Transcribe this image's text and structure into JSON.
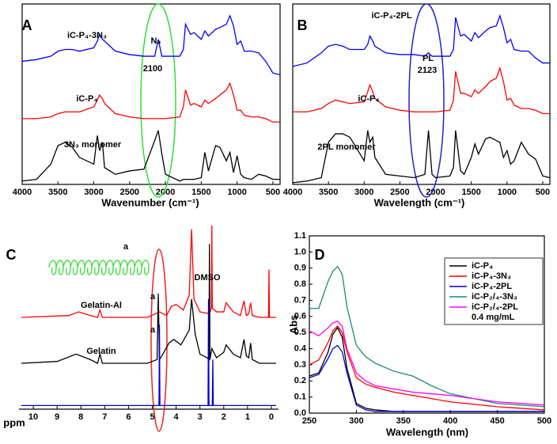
{
  "chart_data": [
    {
      "type": "line",
      "panel": "A",
      "xlabel": "Wavenumber (cm⁻¹)",
      "xlim": [
        4000,
        400
      ],
      "ylim": [
        0,
        10.7
      ],
      "xticks": [
        4000,
        3500,
        3000,
        2500,
        2000,
        1500,
        1000,
        500
      ],
      "annotations": [
        "iC-P₄-3N₃",
        "N₃",
        "2100",
        "iC-P₄",
        "3N₃ monomer"
      ],
      "x": [
        4000,
        3800,
        3600,
        3500,
        3400,
        3300,
        3200,
        3000,
        2950,
        2920,
        2880,
        2850,
        2700,
        2500,
        2300,
        2150,
        2100,
        2050,
        2000,
        1800,
        1750,
        1720,
        1650,
        1600,
        1500,
        1450,
        1400,
        1300,
        1240,
        1150,
        1100,
        1050,
        1000,
        950,
        900,
        800,
        700,
        600,
        500,
        400
      ],
      "series": [
        {
          "color": "#0000ff",
          "values": [
            7.3,
            7.4,
            7.6,
            7.9,
            8.0,
            8.0,
            7.9,
            8.1,
            8.5,
            8.9,
            8.6,
            8.5,
            7.9,
            7.7,
            7.6,
            7.6,
            8.6,
            7.6,
            7.6,
            7.6,
            8.0,
            9.5,
            8.9,
            9.0,
            8.6,
            9.1,
            8.8,
            9.2,
            9.3,
            9.5,
            10.0,
            9.4,
            8.3,
            8.5,
            7.9,
            7.9,
            7.8,
            7.3,
            6.6,
            6.5
          ]
        },
        {
          "color": "#ff0000",
          "values": [
            3.9,
            3.9,
            4.0,
            4.2,
            4.3,
            4.3,
            4.3,
            4.6,
            5.0,
            5.3,
            5.1,
            4.8,
            4.2,
            4.0,
            3.9,
            3.9,
            3.9,
            3.9,
            3.9,
            4.0,
            4.6,
            5.6,
            4.7,
            4.8,
            4.6,
            5.0,
            4.8,
            5.1,
            5.3,
            5.6,
            6.0,
            5.3,
            4.4,
            4.4,
            4.1,
            4.0,
            4.0,
            3.9,
            3.7,
            3.7
          ]
        },
        {
          "color": "#000000",
          "values": [
            0.2,
            0.3,
            1.2,
            2.3,
            2.5,
            2.2,
            1.6,
            1.2,
            2.9,
            2.0,
            2.5,
            1.0,
            0.6,
            0.8,
            0.9,
            2.6,
            3.2,
            1.8,
            0.6,
            0.2,
            0.3,
            0.3,
            0.3,
            0.3,
            0.4,
            1.9,
            0.8,
            2.3,
            2.2,
            1.4,
            1.9,
            0.7,
            1.7,
            0.6,
            0.4,
            0.3,
            0.6,
            0.5,
            0.3,
            0.3
          ]
        }
      ]
    },
    {
      "type": "line",
      "panel": "B",
      "xlabel": "Wavelength (cm⁻¹)",
      "xlim": [
        4000,
        400
      ],
      "ylim": [
        0,
        10.7
      ],
      "xticks": [
        4000,
        3500,
        3000,
        2500,
        2000,
        1500,
        1000,
        500
      ],
      "annotations": [
        "iC-P₄-2PL",
        "PL",
        "2123",
        "iC-P₄",
        "2PL monomer"
      ],
      "x": [
        4000,
        3800,
        3600,
        3500,
        3400,
        3300,
        3200,
        3000,
        2950,
        2920,
        2880,
        2850,
        2700,
        2500,
        2300,
        2150,
        2100,
        2050,
        2000,
        1800,
        1750,
        1720,
        1650,
        1600,
        1500,
        1450,
        1400,
        1300,
        1240,
        1150,
        1100,
        1050,
        1000,
        950,
        900,
        800,
        700,
        600,
        500,
        400
      ],
      "series": [
        {
          "color": "#0000ff",
          "values": [
            7.0,
            7.2,
            7.8,
            8.2,
            8.3,
            8.2,
            8.0,
            8.0,
            8.3,
            8.8,
            8.5,
            8.2,
            7.8,
            7.7,
            7.7,
            7.6,
            7.8,
            7.6,
            7.6,
            7.6,
            8.0,
            9.9,
            8.8,
            8.9,
            8.5,
            9.0,
            8.7,
            9.1,
            9.3,
            9.4,
            10.0,
            9.3,
            8.4,
            8.6,
            8.0,
            7.9,
            7.9,
            7.5,
            7.2,
            7.2
          ]
        },
        {
          "color": "#ff0000",
          "values": [
            4.3,
            4.3,
            4.5,
            4.8,
            5.0,
            4.9,
            4.8,
            4.9,
            5.5,
            5.9,
            5.5,
            5.1,
            4.6,
            4.4,
            4.3,
            4.3,
            4.3,
            4.3,
            4.3,
            4.4,
            5.0,
            6.7,
            5.4,
            5.4,
            5.2,
            5.6,
            5.4,
            5.8,
            6.1,
            6.3,
            6.9,
            6.1,
            5.0,
            5.1,
            4.7,
            4.5,
            4.5,
            4.4,
            4.2,
            4.2
          ]
        },
        {
          "color": "#000000",
          "values": [
            0.1,
            0.2,
            0.4,
            2.5,
            3.0,
            3.0,
            2.8,
            1.4,
            3.2,
            2.5,
            2.8,
            1.6,
            0.6,
            0.5,
            0.4,
            0.6,
            3.2,
            0.6,
            0.4,
            0.5,
            1.0,
            3.2,
            0.8,
            0.6,
            1.6,
            2.4,
            1.8,
            2.7,
            2.8,
            2.6,
            2.5,
            1.6,
            2.0,
            1.2,
            1.4,
            2.5,
            1.8,
            1.5,
            0.5,
            0.4
          ]
        }
      ]
    },
    {
      "type": "line",
      "panel": "C",
      "xlabel": "ppm",
      "xlim": [
        10.6,
        -0.3
      ],
      "ylim": [
        0,
        10
      ],
      "xticks": [
        10,
        9,
        8,
        7,
        6,
        5,
        4,
        3,
        2,
        1,
        0
      ],
      "annotations": [
        "DMSO",
        "Gelatin-Al",
        "Gelatin",
        "a",
        "a",
        "a"
      ],
      "series": [
        {
          "color": "#ff0000",
          "x": [
            10.5,
            8.5,
            8.1,
            7.6,
            7.3,
            7.2,
            7.1,
            5.2,
            4.7,
            4.4,
            4.2,
            4.0,
            3.7,
            3.45,
            3.35,
            3.25,
            3.0,
            2.6,
            2.52,
            2.5,
            2.48,
            2.3,
            2.0,
            1.9,
            1.6,
            1.3,
            1.15,
            1.05,
            0.95,
            0.87,
            0.8,
            0.5,
            0.12,
            0.1,
            0.08,
            -0.2
          ],
          "values": [
            5.0,
            5.1,
            5.3,
            5.1,
            5.0,
            5.4,
            5.0,
            5.0,
            5.3,
            5.1,
            5.6,
            5.7,
            5.4,
            6.2,
            9.8,
            6.0,
            5.3,
            5.2,
            5.5,
            10,
            5.5,
            5.3,
            5.3,
            5.8,
            5.3,
            5.1,
            5.9,
            5.1,
            5.2,
            5.8,
            5.1,
            5.0,
            5.0,
            7.6,
            5.0,
            5.0
          ]
        },
        {
          "color": "#000000",
          "x": [
            10.5,
            9,
            8.2,
            7.6,
            7.3,
            7.2,
            7.1,
            5.2,
            4.8,
            4.75,
            4.7,
            4.6,
            4.3,
            4.1,
            3.8,
            3.45,
            3.35,
            3.2,
            3.0,
            2.7,
            2.62,
            2.6,
            2.58,
            2.5,
            2.3,
            2.0,
            1.9,
            1.6,
            1.3,
            1.15,
            1.05,
            0.95,
            0.87,
            0.8,
            0.5,
            -0.2
          ],
          "values": [
            2.5,
            2.6,
            3.0,
            2.7,
            2.5,
            3.0,
            2.5,
            2.5,
            2.7,
            6.3,
            2.7,
            2.9,
            3.6,
            3.8,
            3.5,
            4.3,
            6.0,
            4.1,
            3.0,
            2.8,
            2.7,
            9.0,
            2.7,
            3.3,
            2.8,
            3.1,
            3.5,
            3.0,
            2.8,
            3.8,
            2.9,
            2.8,
            3.6,
            2.7,
            2.5,
            2.5
          ]
        },
        {
          "color": "#0000cc",
          "x": [
            10.5,
            4.72,
            4.7,
            4.68,
            2.66,
            2.64,
            2.62,
            2.48,
            2.46,
            2.44,
            -0.2
          ],
          "values": [
            0.2,
            0.2,
            4.6,
            0.2,
            0.2,
            6.0,
            0.2,
            0.2,
            2.7,
            0.2,
            0.2
          ]
        }
      ]
    },
    {
      "type": "line",
      "panel": "D",
      "xlabel": "Wavelength (nm)",
      "ylabel": "Abs",
      "xlim": [
        250,
        500
      ],
      "ylim": [
        0,
        1.1
      ],
      "xticks": [
        250,
        300,
        350,
        400,
        450,
        500
      ],
      "yticks": [
        {
          "value": 0,
          "label": "0.0"
        },
        0.1,
        0.2,
        0.3,
        0.4,
        0.5,
        0.6,
        0.7,
        0.8,
        0.9,
        {
          "value": 1,
          "label": "1.0"
        },
        1.1
      ],
      "legend_note": "0.4 mg/mL",
      "legend": "upper right",
      "x": [
        250,
        260,
        270,
        275,
        280,
        285,
        290,
        300,
        310,
        320,
        340,
        360,
        380,
        400,
        450,
        500
      ],
      "series": [
        {
          "name": "iC-P₄",
          "color": "#000000",
          "values": [
            0.23,
            0.25,
            0.38,
            0.49,
            0.53,
            0.47,
            0.28,
            0.06,
            0.03,
            0.02,
            0.01,
            0.01,
            0.01,
            0.01,
            0.01,
            0.01
          ]
        },
        {
          "name": "iC-P₄-3N₃",
          "color": "#ff0000",
          "values": [
            0.3,
            0.33,
            0.44,
            0.51,
            0.54,
            0.5,
            0.38,
            0.22,
            0.18,
            0.16,
            0.13,
            0.11,
            0.09,
            0.07,
            0.04,
            0.02
          ]
        },
        {
          "name": "iC-P₄-2PL",
          "color": "#0000cc",
          "values": [
            0.22,
            0.24,
            0.34,
            0.4,
            0.42,
            0.38,
            0.25,
            0.05,
            0.02,
            0.01,
            0.01,
            0.01,
            0.01,
            0.01,
            0.01,
            0.01
          ]
        },
        {
          "name": "iC-P₂/₄-3N₃",
          "color": "#1a8a7a",
          "values": [
            0.65,
            0.65,
            0.82,
            0.88,
            0.91,
            0.86,
            0.66,
            0.42,
            0.35,
            0.31,
            0.26,
            0.23,
            0.17,
            0.12,
            0.06,
            0.04
          ]
        },
        {
          "name": "iC-P₂/₄-2PL",
          "color": "#ff00ff",
          "values": [
            0.51,
            0.48,
            0.53,
            0.56,
            0.57,
            0.54,
            0.4,
            0.25,
            0.2,
            0.17,
            0.15,
            0.13,
            0.12,
            0.11,
            0.07,
            0.05
          ]
        }
      ]
    }
  ]
}
